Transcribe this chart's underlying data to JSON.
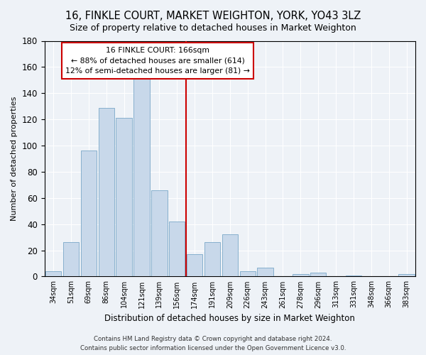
{
  "title": "16, FINKLE COURT, MARKET WEIGHTON, YORK, YO43 3LZ",
  "subtitle": "Size of property relative to detached houses in Market Weighton",
  "xlabel": "Distribution of detached houses by size in Market Weighton",
  "ylabel": "Number of detached properties",
  "categories": [
    "34sqm",
    "51sqm",
    "69sqm",
    "86sqm",
    "104sqm",
    "121sqm",
    "139sqm",
    "156sqm",
    "174sqm",
    "191sqm",
    "209sqm",
    "226sqm",
    "243sqm",
    "261sqm",
    "278sqm",
    "296sqm",
    "313sqm",
    "331sqm",
    "348sqm",
    "366sqm",
    "383sqm"
  ],
  "values": [
    4,
    26,
    96,
    129,
    121,
    152,
    66,
    42,
    17,
    26,
    32,
    4,
    7,
    0,
    2,
    3,
    0,
    1,
    0,
    0,
    2
  ],
  "bar_color": "#c8d8ea",
  "bar_edge_color": "#7aa8c8",
  "vline_color": "#cc0000",
  "annotation_line1": "16 FINKLE COURT: 166sqm",
  "annotation_line2": "← 88% of detached houses are smaller (614)",
  "annotation_line3": "12% of semi-detached houses are larger (81) →",
  "annotation_box_color": "#ffffff",
  "annotation_box_edge_color": "#cc0000",
  "ylim": [
    0,
    180
  ],
  "yticks": [
    0,
    20,
    40,
    60,
    80,
    100,
    120,
    140,
    160,
    180
  ],
  "footnote1": "Contains HM Land Registry data © Crown copyright and database right 2024.",
  "footnote2": "Contains public sector information licensed under the Open Government Licence v3.0.",
  "background_color": "#eef2f7",
  "title_fontsize": 10.5,
  "grid_color": "#ffffff",
  "tick_label_fontsize": 7
}
